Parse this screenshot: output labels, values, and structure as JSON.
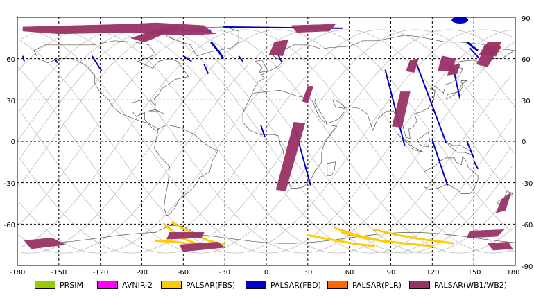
{
  "map": {
    "x_ticks": [
      "-180",
      "-150",
      "-120",
      "-90",
      "-60",
      "-30",
      "0",
      "30",
      "60",
      "90",
      "120",
      "150",
      "180"
    ],
    "y_ticks_left": [
      "60",
      "30",
      "0",
      "-30",
      "-60"
    ],
    "y_ticks_right": [
      "90",
      "60",
      "30",
      "0",
      "-30",
      "-60",
      "-90"
    ]
  },
  "legend": [
    {
      "label": "PRSIM",
      "color": "#99cc00"
    },
    {
      "label": "AVNIR-2",
      "color": "#ff00ff"
    },
    {
      "label": "PALSAR(FBS)",
      "color": "#ffcc00"
    },
    {
      "label": "PALSAR(FBD)",
      "color": "#0000cc"
    },
    {
      "label": "PALSAR(PLR)",
      "color": "#ff6600"
    },
    {
      "label": "PALSAR(WB1/WB2)",
      "color": "#993366"
    }
  ],
  "colors": {
    "grid": "#000000",
    "orbit": "#bdbdbd",
    "coast": "#555555",
    "fbs": "#ffcc00",
    "fbd": "#0000cc",
    "wb": "#993366"
  }
}
